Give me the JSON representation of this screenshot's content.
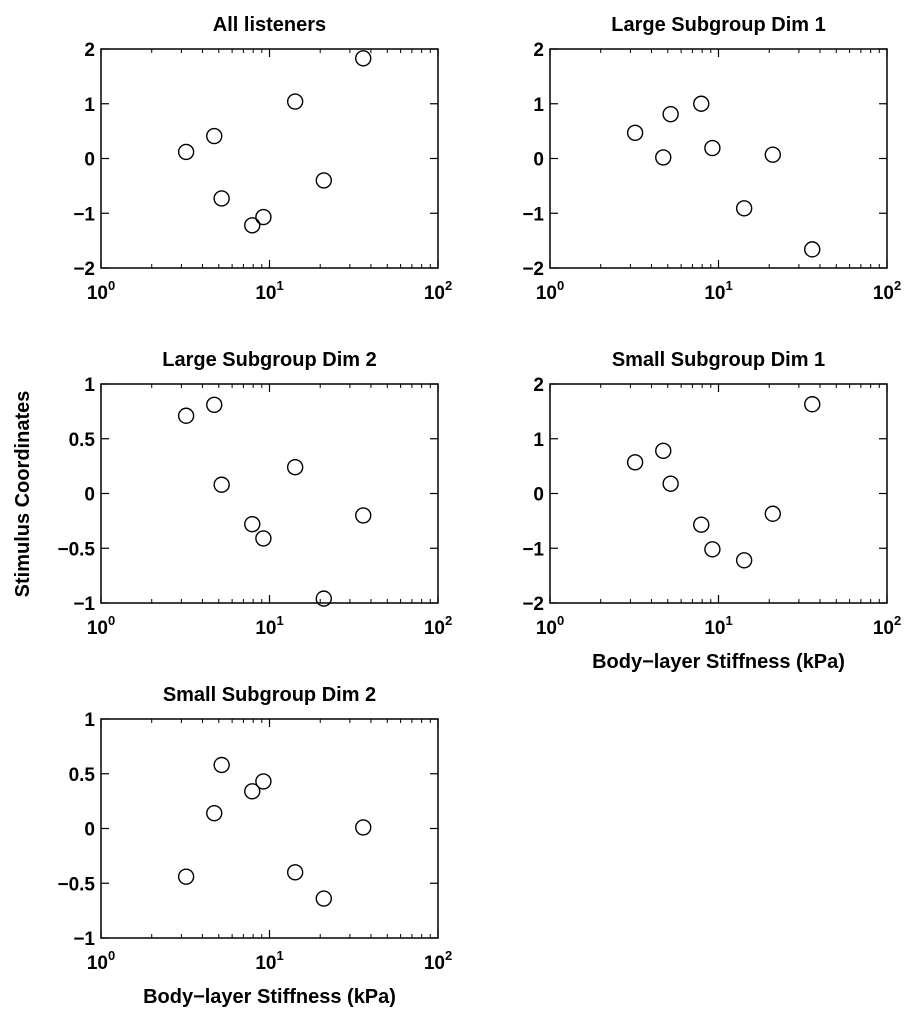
{
  "figure": {
    "shared_ylabel": "Stimulus Coordinates"
  },
  "chart_data": [
    {
      "type": "scatter",
      "title": "All listeners",
      "xlabel": "",
      "xscale": "log",
      "xlim": [
        1,
        100
      ],
      "ylim": [
        -2,
        2
      ],
      "xticks": [
        {
          "base": "10",
          "exp": "0"
        },
        {
          "base": "10",
          "exp": "1"
        },
        {
          "base": "10",
          "exp": "2"
        }
      ],
      "yticks": [
        2,
        1,
        0,
        -1,
        -2
      ],
      "ytick_labels": [
        "2",
        "1",
        "0",
        "−1",
        "−2"
      ],
      "x": [
        3.2,
        4.7,
        5.2,
        7.9,
        9.2,
        14.2,
        21.0,
        36.0
      ],
      "y": [
        0.12,
        0.41,
        -0.73,
        -1.22,
        -1.07,
        1.04,
        -0.4,
        1.83
      ],
      "marker": "open-circle",
      "grid": false
    },
    {
      "type": "scatter",
      "title": "Large Subgroup Dim 1",
      "xlabel": "",
      "xscale": "log",
      "xlim": [
        1,
        100
      ],
      "ylim": [
        -2,
        2
      ],
      "xticks": [
        {
          "base": "10",
          "exp": "0"
        },
        {
          "base": "10",
          "exp": "1"
        },
        {
          "base": "10",
          "exp": "2"
        }
      ],
      "yticks": [
        2,
        1,
        0,
        -1,
        -2
      ],
      "ytick_labels": [
        "2",
        "1",
        "0",
        "−1",
        "−2"
      ],
      "x": [
        3.2,
        4.7,
        5.2,
        7.9,
        9.2,
        14.2,
        21.0,
        36.0
      ],
      "y": [
        0.47,
        0.02,
        0.81,
        1.0,
        0.19,
        -0.91,
        0.07,
        -1.66
      ],
      "marker": "open-circle",
      "grid": false
    },
    {
      "type": "scatter",
      "title": "Large Subgroup Dim 2",
      "xlabel": "",
      "xscale": "log",
      "xlim": [
        1,
        100
      ],
      "ylim": [
        -1,
        1
      ],
      "xticks": [
        {
          "base": "10",
          "exp": "0"
        },
        {
          "base": "10",
          "exp": "1"
        },
        {
          "base": "10",
          "exp": "2"
        }
      ],
      "yticks": [
        1,
        0.5,
        0,
        -0.5,
        -1
      ],
      "ytick_labels": [
        "1",
        "0.5",
        "0",
        "−0.5",
        "−1"
      ],
      "x": [
        3.2,
        4.7,
        5.2,
        7.9,
        9.2,
        14.2,
        21.0,
        36.0
      ],
      "y": [
        0.71,
        0.81,
        0.08,
        -0.28,
        -0.41,
        0.24,
        -0.96,
        -0.2
      ],
      "marker": "open-circle",
      "grid": false
    },
    {
      "type": "scatter",
      "title": "Small Subgroup Dim 1",
      "xlabel": "Body−layer Stiffness (kPa)",
      "xscale": "log",
      "xlim": [
        1,
        100
      ],
      "ylim": [
        -2,
        2
      ],
      "xticks": [
        {
          "base": "10",
          "exp": "0"
        },
        {
          "base": "10",
          "exp": "1"
        },
        {
          "base": "10",
          "exp": "2"
        }
      ],
      "yticks": [
        2,
        1,
        0,
        -1,
        -2
      ],
      "ytick_labels": [
        "2",
        "1",
        "0",
        "−1",
        "−2"
      ],
      "x": [
        3.2,
        4.7,
        5.2,
        7.9,
        9.2,
        14.2,
        21.0,
        36.0
      ],
      "y": [
        0.57,
        0.78,
        0.18,
        -0.57,
        -1.02,
        -1.22,
        -0.37,
        1.63
      ],
      "marker": "open-circle",
      "grid": false
    },
    {
      "type": "scatter",
      "title": "Small Subgroup Dim 2",
      "xlabel": "Body−layer Stiffness (kPa)",
      "xscale": "log",
      "xlim": [
        1,
        100
      ],
      "ylim": [
        -1,
        1
      ],
      "xticks": [
        {
          "base": "10",
          "exp": "0"
        },
        {
          "base": "10",
          "exp": "1"
        },
        {
          "base": "10",
          "exp": "2"
        }
      ],
      "yticks": [
        1,
        0.5,
        0,
        -0.5,
        -1
      ],
      "ytick_labels": [
        "1",
        "0.5",
        "0",
        "−0.5",
        "−1"
      ],
      "x": [
        3.2,
        4.7,
        5.2,
        7.9,
        9.2,
        14.2,
        21.0,
        36.0
      ],
      "y": [
        -0.44,
        0.14,
        0.58,
        0.34,
        0.43,
        -0.4,
        -0.64,
        0.01
      ],
      "marker": "open-circle",
      "grid": false
    }
  ]
}
